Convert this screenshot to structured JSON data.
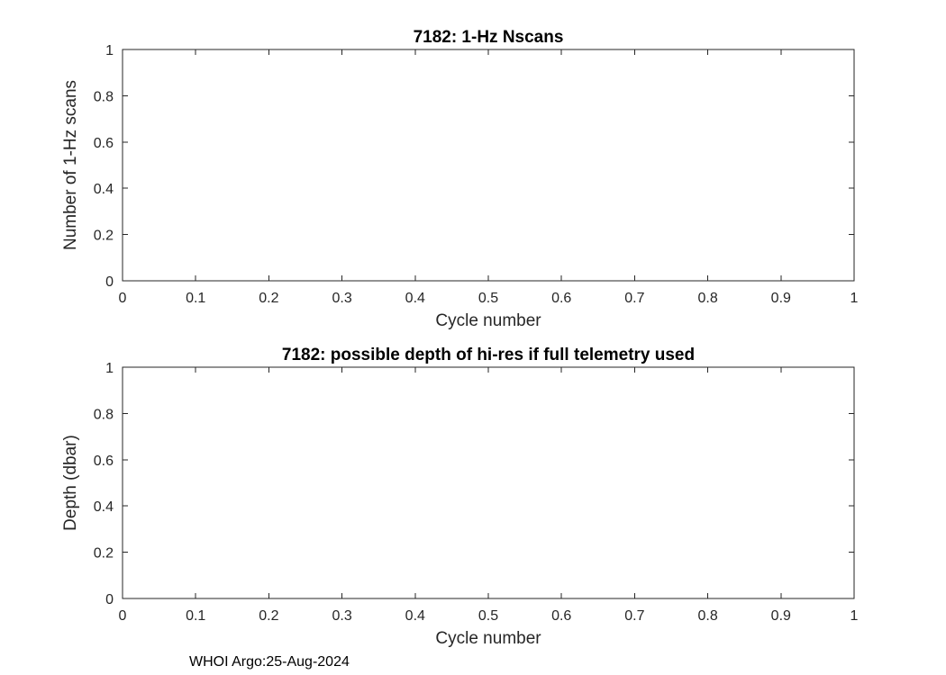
{
  "figure": {
    "footer": "WHOI Argo:25-Aug-2024"
  },
  "colors": {
    "axis": "#262626",
    "title": "#000000",
    "background": "#ffffff"
  },
  "chart_data": [
    {
      "type": "line",
      "title": "7182: 1-Hz Nscans",
      "xlabel": "Cycle number",
      "ylabel": "Number of 1-Hz scans",
      "xlim": [
        0,
        1
      ],
      "ylim": [
        0,
        1
      ],
      "xticks": [
        0,
        0.1,
        0.2,
        0.3,
        0.4,
        0.5,
        0.6,
        0.7,
        0.8,
        0.9,
        1
      ],
      "yticks": [
        0,
        0.2,
        0.4,
        0.6,
        0.8,
        1
      ],
      "grid": false,
      "legend": false,
      "series": []
    },
    {
      "type": "line",
      "title": "7182: possible depth of hi-res if full telemetry used",
      "xlabel": "Cycle number",
      "ylabel": "Depth (dbar)",
      "xlim": [
        0,
        1
      ],
      "ylim": [
        0,
        1
      ],
      "xticks": [
        0,
        0.1,
        0.2,
        0.3,
        0.4,
        0.5,
        0.6,
        0.7,
        0.8,
        0.9,
        1
      ],
      "yticks": [
        0,
        0.2,
        0.4,
        0.6,
        0.8,
        1
      ],
      "grid": false,
      "legend": false,
      "series": []
    }
  ]
}
